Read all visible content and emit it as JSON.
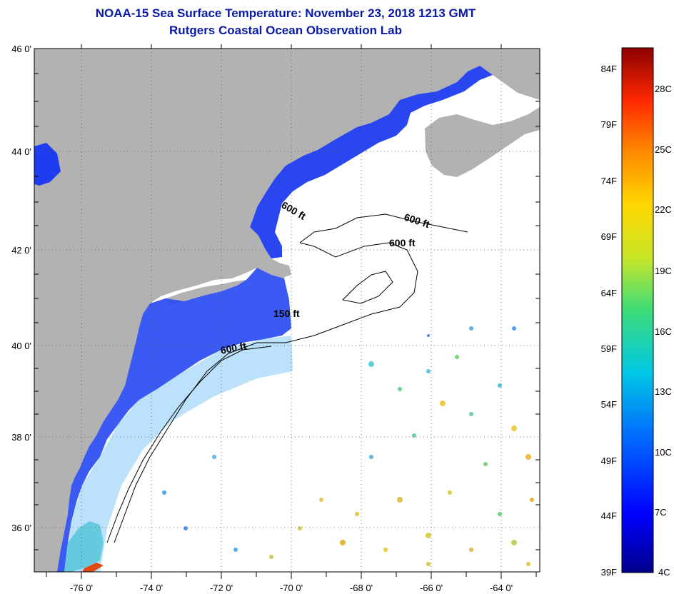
{
  "header": {
    "title": "NOAA-15 Sea Surface Temperature:  November 23, 2018 1213 GMT",
    "subtitle": "Rutgers Coastal Ocean Observation Lab"
  },
  "map": {
    "lat_labels": [
      "46 0'",
      "44 0'",
      "42 0'",
      "40 0'",
      "38 0'",
      "36 0'"
    ],
    "lon_labels": [
      "-76 0'",
      "-74 0'",
      "-72 0'",
      "-70 0'",
      "-68 0'",
      "-66 0'",
      "-64 0'"
    ],
    "depth_labels": {
      "gulf_maine": "600 ft",
      "georges_east": "600 ft",
      "georges_mid": "600 ft",
      "shelf_150": "150 ft",
      "shelf_600": "600 ft"
    },
    "colors": {
      "land": "#b2b2b2",
      "ocean_nodata": "#ffffff",
      "coastal_water": "#1e3cf0"
    }
  },
  "colorbar": {
    "fahrenheit_labels": [
      "84F",
      "79F",
      "74F",
      "69F",
      "64F",
      "59F",
      "54F",
      "49F",
      "44F",
      "39F"
    ],
    "celsius_labels": [
      "28C",
      "25C",
      "22C",
      "19C",
      "16C",
      "13C",
      "10C",
      "7C",
      "4C"
    ],
    "gradient": [
      "#00008a",
      "#0000ff",
      "#0064ff",
      "#00c8e6",
      "#3cdc78",
      "#c8e628",
      "#ffd700",
      "#ff8c00",
      "#ff2800",
      "#8b0000"
    ]
  }
}
